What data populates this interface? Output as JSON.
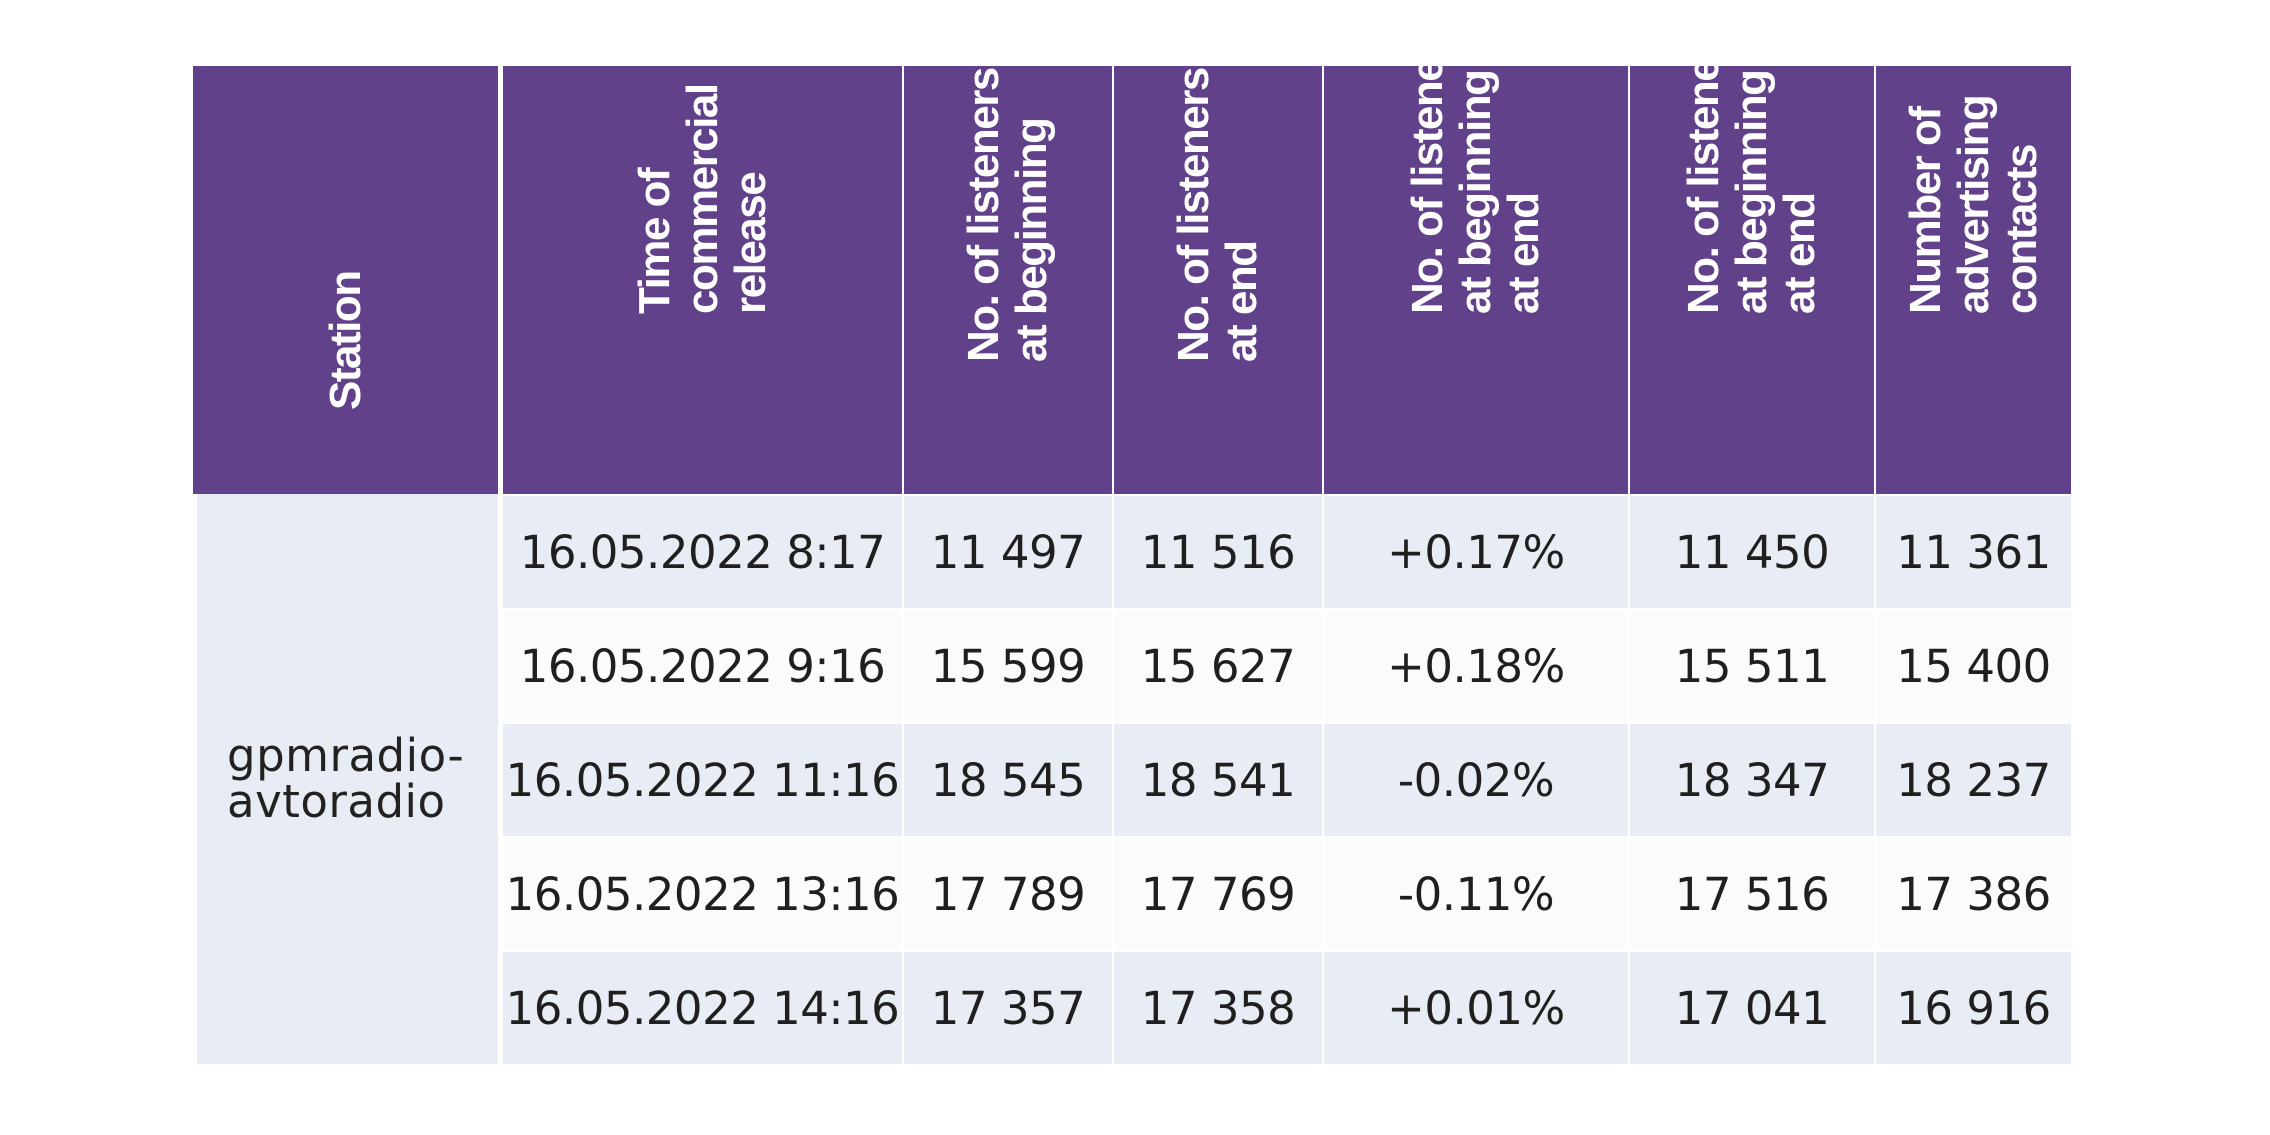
{
  "table": {
    "headers": [
      "Station",
      "Time of\ncommercial\nrelease",
      "No. of listeners\nat beginning",
      "No. of listeners\nat end",
      "No. of listeners\nat beginning vs.\nat end",
      "No. of listeners\nat beginning vs.\nat end",
      "Number of\nadvertising\ncontacts"
    ],
    "station": "gpmradio-\navtoradio",
    "rows": [
      [
        "16.05.2022 8:17",
        "11 497",
        "11 516",
        "+0.17%",
        "11 450",
        "11 361"
      ],
      [
        "16.05.2022 9:16",
        "15 599",
        "15 627",
        "+0.18%",
        "15 511",
        "15 400"
      ],
      [
        "16.05.2022 11:16",
        "18 545",
        "18 541",
        "-0.02%",
        "18 347",
        "18 237"
      ],
      [
        "16.05.2022 13:16",
        "17 789",
        "17 769",
        "-0.11%",
        "17 516",
        "17 386"
      ],
      [
        "16.05.2022 14:16",
        "17 357",
        "17 358",
        "+0.01%",
        "17 041",
        "16 916"
      ]
    ],
    "colors": {
      "header_bg": "#61418a",
      "header_text": "#ffffff",
      "row_odd_bg": "#e8ecf5",
      "row_even_bg": "#fbfbfc",
      "cell_text": "#1f1f1f"
    }
  }
}
